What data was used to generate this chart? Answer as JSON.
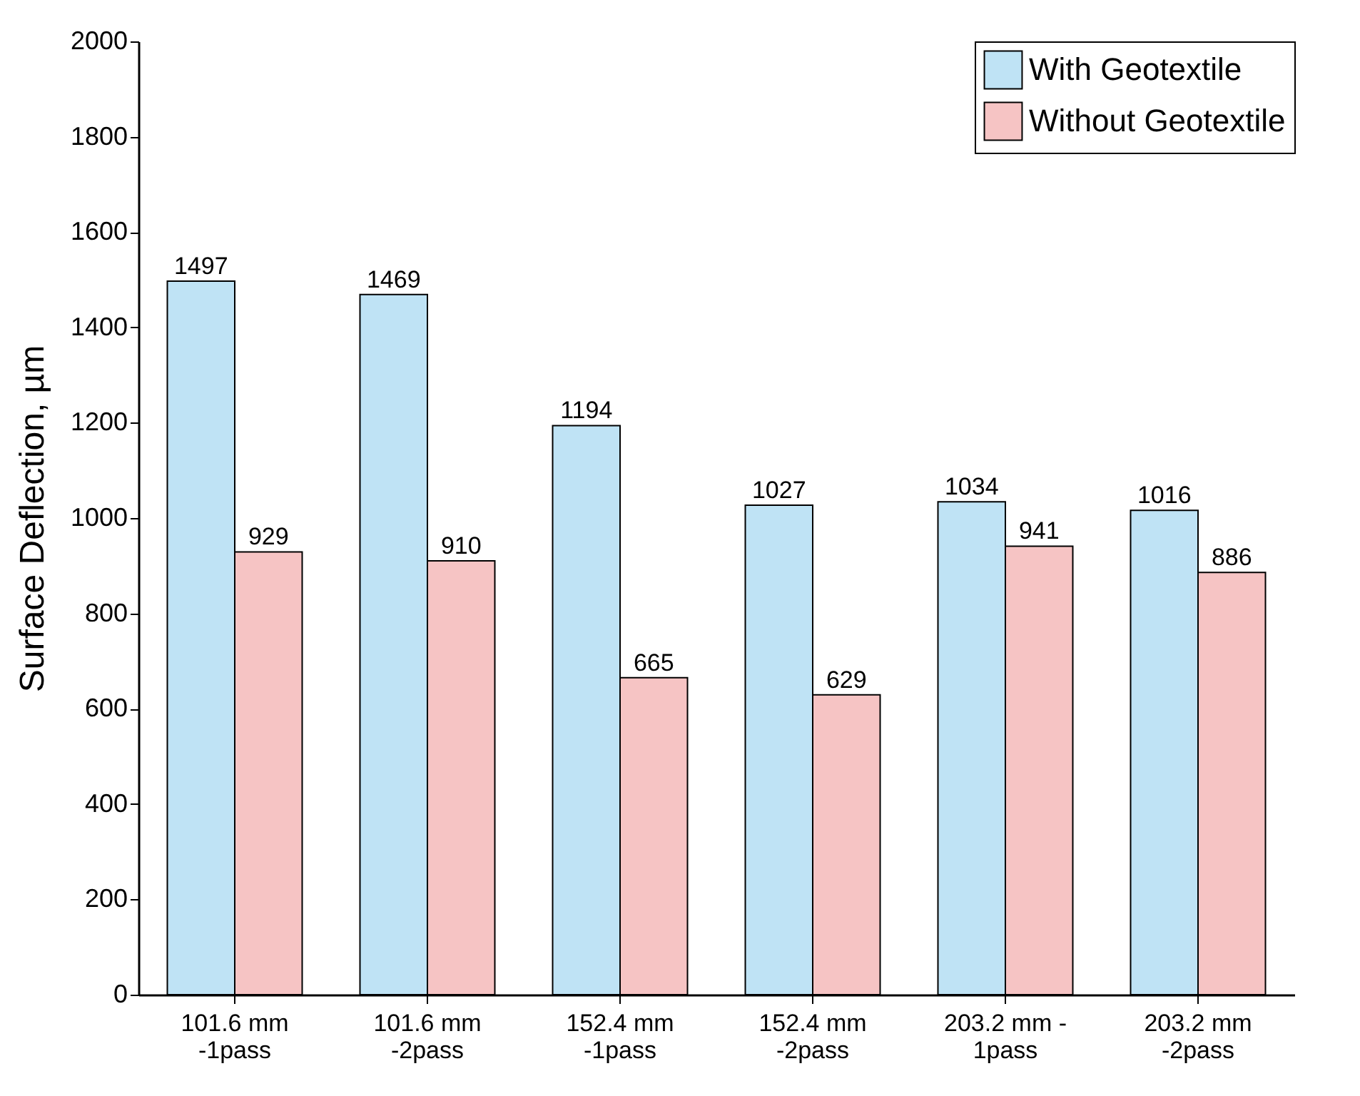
{
  "chart_data": {
    "type": "bar",
    "ylabel": "Surface Deflection, µm",
    "categories": [
      "101.6 mm\n-1pass",
      "101.6 mm\n-2pass",
      "152.4 mm\n-1pass",
      "152.4 mm\n-2pass",
      "203.2 mm -\n1pass",
      "203.2 mm\n-2pass"
    ],
    "series": [
      {
        "name": "With Geotextile",
        "color": "#bfe3f5",
        "values": [
          1497,
          1469,
          1194,
          1027,
          1034,
          1016
        ]
      },
      {
        "name": "Without Geotextile",
        "color": "#f6c4c4",
        "values": [
          929,
          910,
          665,
          629,
          941,
          886
        ]
      }
    ],
    "ylim": [
      0,
      2000
    ],
    "yticks": [
      0,
      200,
      400,
      600,
      800,
      1000,
      1200,
      1400,
      1600,
      1800,
      2000
    ],
    "data_labels": true,
    "legend": "top right",
    "grid": false
  }
}
